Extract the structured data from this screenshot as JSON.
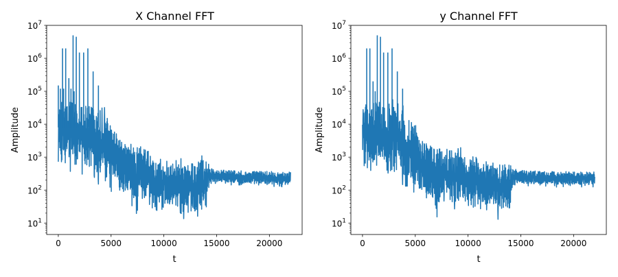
{
  "chart_data": [
    {
      "type": "line",
      "title": "X Channel FFT",
      "xlabel": "t",
      "ylabel": "Amplitude",
      "yscale": "log",
      "xlim": [
        -1100,
        23100
      ],
      "ylim": [
        4.5,
        10000000
      ],
      "xticks": [
        "0",
        "5000",
        "10000",
        "15000",
        "20000"
      ],
      "yticks": [
        {
          "base": "10",
          "exp": "1"
        },
        {
          "base": "10",
          "exp": "2"
        },
        {
          "base": "10",
          "exp": "3"
        },
        {
          "base": "10",
          "exp": "4"
        },
        {
          "base": "10",
          "exp": "5"
        },
        {
          "base": "10",
          "exp": "6"
        },
        {
          "base": "10",
          "exp": "7"
        }
      ],
      "color": "#1f77b4",
      "grid": false,
      "series": [
        {
          "x": [
            0,
            200,
            400,
            500,
            700,
            800,
            1000,
            1200,
            1400,
            1500,
            1700,
            1800,
            2000,
            2200,
            2400,
            2600,
            2800,
            3000,
            3300,
            3600,
            3800,
            4000,
            4400,
            4700,
            5000,
            5500,
            6000,
            6500,
            7000,
            7500,
            8000,
            8500,
            9000,
            9500,
            10000,
            11000,
            12000,
            12500,
            13000,
            13500,
            14000,
            14200,
            14500,
            15000,
            16000,
            17000,
            18000,
            19000,
            20000,
            21000,
            22000
          ],
          "y_high": [
            150000,
            120000,
            2000000,
            120000,
            2000000,
            80000,
            250000,
            120000,
            5000000,
            100000,
            4500000,
            80000,
            1500000,
            80000,
            1500000,
            80000,
            2000000,
            60000,
            400000,
            60000,
            150000,
            40000,
            40000,
            25000,
            15000,
            8000,
            5000,
            4000,
            4000,
            3500,
            3500,
            2500,
            1500,
            1500,
            1200,
            1000,
            1000,
            1000,
            1000,
            1200,
            1500,
            800,
            500,
            450,
            450,
            450,
            420,
            420,
            420,
            400,
            400
          ],
          "y_low": [
            500,
            400,
            800,
            300,
            200,
            400,
            400,
            300,
            500,
            300,
            400,
            200,
            300,
            250,
            300,
            200,
            150,
            200,
            200,
            150,
            100,
            150,
            100,
            80,
            70,
            60,
            40,
            40,
            30,
            10,
            40,
            30,
            20,
            20,
            20,
            20,
            10,
            20,
            9,
            20,
            10,
            100,
            150,
            150,
            140,
            140,
            130,
            130,
            130,
            120,
            120
          ]
        }
      ]
    },
    {
      "type": "line",
      "title": "y Channel FFT",
      "xlabel": "t",
      "ylabel": "Amplitude",
      "yscale": "log",
      "xlim": [
        -1100,
        23100
      ],
      "ylim": [
        4.5,
        10000000
      ],
      "xticks": [
        "0",
        "5000",
        "10000",
        "15000",
        "20000"
      ],
      "yticks": [
        {
          "base": "10",
          "exp": "1"
        },
        {
          "base": "10",
          "exp": "2"
        },
        {
          "base": "10",
          "exp": "3"
        },
        {
          "base": "10",
          "exp": "4"
        },
        {
          "base": "10",
          "exp": "5"
        },
        {
          "base": "10",
          "exp": "6"
        },
        {
          "base": "10",
          "exp": "7"
        }
      ],
      "color": "#1f77b4",
      "grid": false,
      "series": [
        {
          "x": [
            0,
            200,
            400,
            500,
            700,
            800,
            1000,
            1200,
            1400,
            1500,
            1700,
            1800,
            2000,
            2200,
            2400,
            2600,
            2800,
            3000,
            3300,
            3600,
            3800,
            4000,
            4400,
            4700,
            5000,
            5500,
            6000,
            6500,
            7000,
            7500,
            8000,
            8500,
            9000,
            9500,
            10000,
            11000,
            12000,
            12500,
            13000,
            13500,
            14000,
            14200,
            14500,
            15000,
            16000,
            17000,
            18000,
            19000,
            20000,
            21000,
            22000
          ],
          "y_high": [
            30000,
            50000,
            2000000,
            80000,
            2000000,
            60000,
            200000,
            100000,
            5000000,
            80000,
            4500000,
            80000,
            1500000,
            60000,
            1500000,
            60000,
            2000000,
            50000,
            400000,
            40000,
            120000,
            30000,
            25000,
            20000,
            15000,
            8000,
            5000,
            4000,
            3500,
            3000,
            3000,
            2500,
            2500,
            2000,
            1500,
            1000,
            1000,
            1000,
            1000,
            1000,
            1000,
            600,
            500,
            450,
            450,
            420,
            420,
            420,
            400,
            400,
            400
          ],
          "y_low": [
            500,
            450,
            300,
            400,
            300,
            200,
            300,
            300,
            400,
            300,
            400,
            200,
            300,
            250,
            300,
            150,
            150,
            200,
            150,
            150,
            100,
            120,
            100,
            80,
            60,
            50,
            40,
            30,
            10,
            30,
            30,
            20,
            20,
            20,
            30,
            20,
            20,
            20,
            9,
            20,
            10,
            100,
            130,
            130,
            130,
            130,
            120,
            120,
            120,
            120,
            120
          ]
        }
      ]
    }
  ]
}
